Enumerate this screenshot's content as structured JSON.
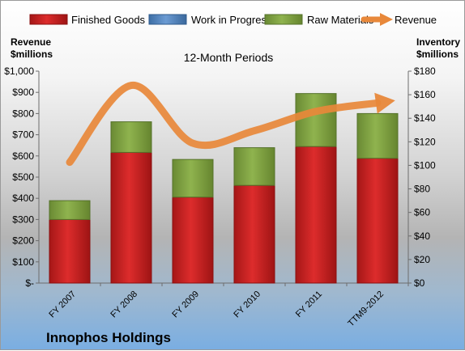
{
  "chart_data": {
    "type": "bar",
    "stacked": true,
    "title": "12-Month Periods",
    "categories": [
      "FY 2007",
      "FY 2008",
      "FY 2009",
      "FY 2010",
      "FY 2011",
      "TTM9-2012"
    ],
    "series": [
      {
        "name": "Finished Goods",
        "axis": "right",
        "color": "#cc2222",
        "values": [
          54,
          111,
          73,
          83,
          116,
          106
        ]
      },
      {
        "name": "Work in Progress",
        "axis": "right",
        "color": "#4f81bd",
        "values": [
          0,
          0,
          0,
          0,
          0,
          0
        ]
      },
      {
        "name": "Raw Materials",
        "axis": "right",
        "color": "#7f9f3f",
        "values": [
          16,
          26,
          32,
          32,
          45,
          38
        ]
      },
      {
        "name": "Revenue",
        "axis": "left",
        "type": "line",
        "color": "#e8883a",
        "values": [
          570,
          933,
          660,
          719,
          810,
          850
        ]
      }
    ],
    "ylabel": "Revenue\n$millions",
    "ylabel_right": "Inventory\n$millions",
    "ylim": [
      0,
      1000
    ],
    "ylim_right": [
      0,
      180
    ],
    "yticks": [
      "$-",
      "$100",
      "$200",
      "$300",
      "$400",
      "$500",
      "$600",
      "$700",
      "$800",
      "$900",
      "$1,000"
    ],
    "yticks_right": [
      "$0",
      "$20",
      "$40",
      "$60",
      "$80",
      "$100",
      "$120",
      "$140",
      "$160",
      "$180"
    ],
    "legend_position": "top",
    "grid": false
  },
  "footer": {
    "company": "Innophos Holdings"
  }
}
